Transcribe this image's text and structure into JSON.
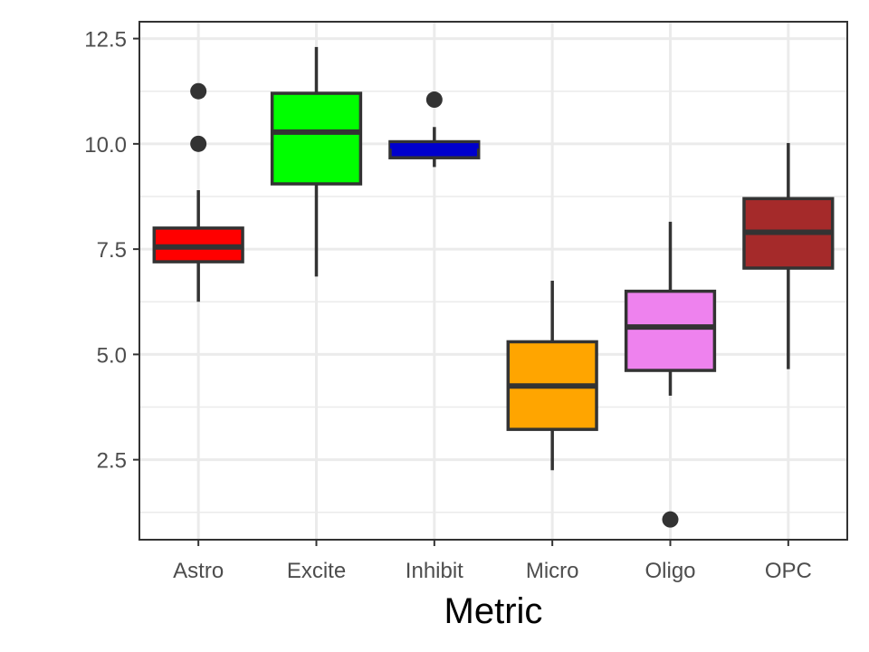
{
  "chart_data": {
    "type": "boxplot",
    "title": "",
    "xlabel": "Metric",
    "ylabel": "",
    "ylim": [
      0.6,
      12.9
    ],
    "y_ticks": [
      2.5,
      5.0,
      7.5,
      10.0,
      12.5
    ],
    "y_tick_labels": [
      "2.5",
      "5.0",
      "7.5",
      "10.0",
      "12.5"
    ],
    "grid": true,
    "legend": "none",
    "categories": [
      "Astro",
      "Excite",
      "Inhibit",
      "Micro",
      "Oligo",
      "OPC"
    ],
    "boxes": [
      {
        "category": "Astro",
        "whisker_low": 6.25,
        "q1": 7.2,
        "median": 7.55,
        "q3": 8.0,
        "whisker_high": 8.9,
        "outliers": [
          10.0,
          11.25
        ],
        "color": "#ff0000",
        "median_color": "#333333"
      },
      {
        "category": "Excite",
        "whisker_low": 6.85,
        "q1": 9.05,
        "median": 10.28,
        "q3": 11.2,
        "whisker_high": 12.3,
        "outliers": [],
        "color": "#00ff00",
        "median_color": "#333333"
      },
      {
        "category": "Inhibit",
        "whisker_low": 9.45,
        "q1": 9.67,
        "median": 9.95,
        "q3": 10.05,
        "whisker_high": 10.4,
        "outliers": [
          11.05
        ],
        "color": "#0000cc",
        "median_color": "#0000cc"
      },
      {
        "category": "Micro",
        "whisker_low": 2.25,
        "q1": 3.22,
        "median": 4.25,
        "q3": 5.3,
        "whisker_high": 6.75,
        "outliers": [],
        "color": "#ffa500",
        "median_color": "#333333"
      },
      {
        "category": "Oligo",
        "whisker_low": 4.02,
        "q1": 4.62,
        "median": 5.65,
        "q3": 6.5,
        "whisker_high": 8.15,
        "outliers": [
          1.08
        ],
        "color": "#ee82ee",
        "median_color": "#333333"
      },
      {
        "category": "OPC",
        "whisker_low": 4.65,
        "q1": 7.05,
        "median": 7.9,
        "q3": 8.7,
        "whisker_high": 10.02,
        "outliers": [],
        "color": "#a52a2a",
        "median_color": "#333333"
      }
    ],
    "colors": {
      "outline": "#333333",
      "grid": "#ebebeb",
      "panel_border": "#333333"
    }
  }
}
